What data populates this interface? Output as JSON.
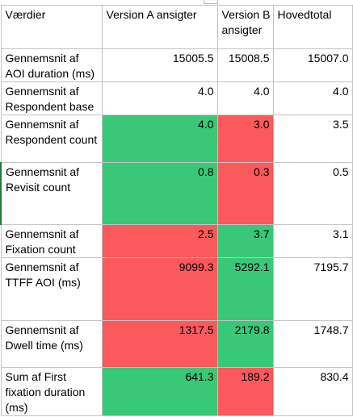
{
  "headers": [
    "Værdier",
    "Version A ansigter",
    "Version B ansigter",
    "Hovedtotal"
  ],
  "rows": [
    {
      "label": "Gennemsnit af AOI duration (ms)",
      "a": "15005.5",
      "b": "15008.5",
      "total": "15007.0",
      "a_color": "",
      "b_color": ""
    },
    {
      "label": "Gennemsnit af Respondent base",
      "a": "4.0",
      "b": "4.0",
      "total": "4.0",
      "a_color": "",
      "b_color": ""
    },
    {
      "label": "Gennemsnit af Respondent count",
      "a": "4.0",
      "b": "3.0",
      "total": "3.5",
      "a_color": "green",
      "b_color": "red"
    },
    {
      "label": "Gennemsnit af Revisit count",
      "a": "0.8",
      "b": "0.3",
      "total": "0.5",
      "a_color": "green",
      "b_color": "red"
    },
    {
      "label": "Gennemsnit af Fixation count",
      "a": "2.5",
      "b": "3.7",
      "total": "3.1",
      "a_color": "red",
      "b_color": "green"
    },
    {
      "label": "Gennemsnit af TTFF AOI (ms)",
      "a": "9099.3",
      "b": "5292.1",
      "total": "7195.7",
      "a_color": "red",
      "b_color": "green"
    },
    {
      "label": "Gennemsnit af Dwell time (ms)",
      "a": "1317.5",
      "b": "2179.8",
      "total": "1748.7",
      "a_color": "red",
      "b_color": "green"
    },
    {
      "label": "Sum af First fixation duration (ms)",
      "a": "641.3",
      "b": "189.2",
      "total": "830.4",
      "a_color": "green",
      "b_color": "red"
    }
  ],
  "colors": {
    "green": "#38c878",
    "red": "#fb595c"
  }
}
